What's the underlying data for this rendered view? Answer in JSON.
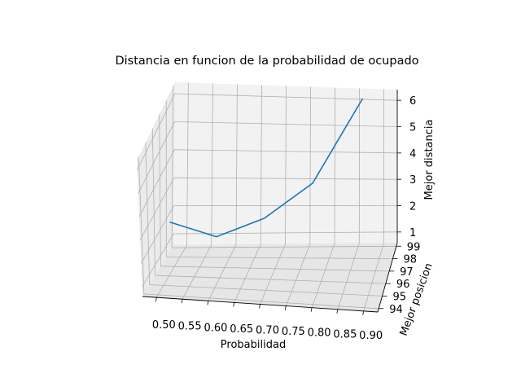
{
  "chart_data": {
    "type": "line",
    "projection": "3d",
    "title": "Distancia en funcion de la probabilidad de ocupado",
    "xlabel": "Probabilidad",
    "ylabel": "Mejor posicion",
    "zlabel": "Mejor distancia",
    "x_ticks": [
      "0.50",
      "0.55",
      "0.60",
      "0.65",
      "0.70",
      "0.75",
      "0.80",
      "0.85",
      "0.90"
    ],
    "y_ticks": [
      "94",
      "95",
      "96",
      "97",
      "98",
      "99"
    ],
    "z_ticks": [
      "1",
      "2",
      "3",
      "4",
      "5",
      "6"
    ],
    "series": [
      {
        "color": "#1f77b4",
        "x": [
          0.5,
          0.6,
          0.7,
          0.8,
          0.9
        ],
        "y": [
          99,
          99,
          99,
          99,
          99
        ],
        "z": [
          1.0,
          0.7,
          1.4,
          2.6,
          5.3
        ]
      }
    ],
    "grid": true,
    "pane_color": "#f2f2f2"
  }
}
